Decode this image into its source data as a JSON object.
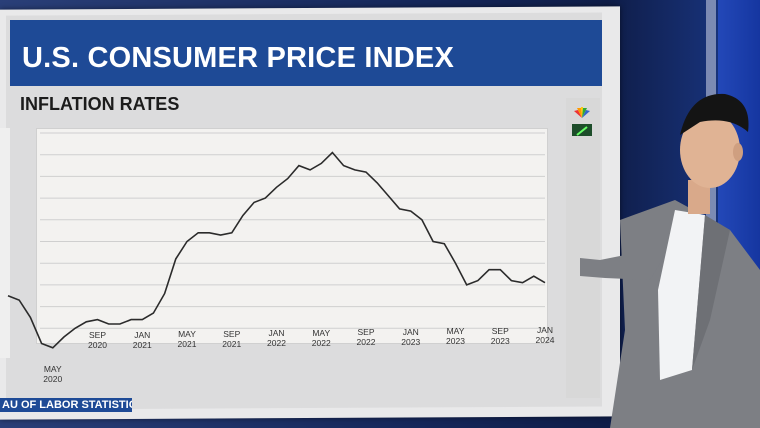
{
  "broadcast": {
    "title": "U.S. CONSUMER PRICE INDEX",
    "subtitle": "INFLATION RATES",
    "source": "AU OF LABOR STATISTICS"
  },
  "chart_data": {
    "type": "line",
    "x_tick_labels": [
      [
        "MAY",
        "2020"
      ],
      [
        "SEP",
        "2020"
      ],
      [
        "JAN",
        "2021"
      ],
      [
        "MAY",
        "2021"
      ],
      [
        "SEP",
        "2021"
      ],
      [
        "JAN",
        "2022"
      ],
      [
        "MAY",
        "2022"
      ],
      [
        "SEP",
        "2022"
      ],
      [
        "JAN",
        "2023"
      ],
      [
        "MAY",
        "2023"
      ],
      [
        "SEP",
        "2023"
      ],
      [
        "JAN",
        "2024"
      ]
    ],
    "series": [
      {
        "x": [
          "2020-01",
          "2020-02",
          "2020-03",
          "2020-04",
          "2020-05",
          "2020-06",
          "2020-07",
          "2020-08",
          "2020-09",
          "2020-10",
          "2020-11",
          "2020-12",
          "2021-01",
          "2021-02",
          "2021-03",
          "2021-04",
          "2021-05",
          "2021-06",
          "2021-07",
          "2021-08",
          "2021-09",
          "2021-10",
          "2021-11",
          "2021-12",
          "2022-01",
          "2022-02",
          "2022-03",
          "2022-04",
          "2022-05",
          "2022-06",
          "2022-07",
          "2022-08",
          "2022-09",
          "2022-10",
          "2022-11",
          "2022-12",
          "2023-01",
          "2023-02",
          "2023-03",
          "2023-04",
          "2023-05",
          "2023-06",
          "2023-07",
          "2023-08",
          "2023-09",
          "2023-10",
          "2023-11",
          "2023-12",
          "2024-01"
        ],
        "y": [
          2.5,
          2.3,
          1.5,
          0.3,
          0.1,
          0.6,
          1.0,
          1.3,
          1.4,
          1.2,
          1.2,
          1.4,
          1.4,
          1.7,
          2.6,
          4.2,
          5.0,
          5.4,
          5.4,
          5.3,
          5.4,
          6.2,
          6.8,
          7.0,
          7.5,
          7.9,
          8.5,
          8.3,
          8.6,
          9.1,
          8.5,
          8.3,
          8.2,
          7.7,
          7.1,
          6.5,
          6.4,
          6.0,
          5.0,
          4.9,
          4.0,
          3.0,
          3.2,
          3.7,
          3.7,
          3.2,
          3.1,
          3.4,
          3.1
        ]
      }
    ],
    "ylim": [
      0,
      10
    ],
    "grid": true,
    "line_color": "#2b2b2b"
  },
  "colors": {
    "title_band": "#1e4a96",
    "plot_bg": "#f3f2f0",
    "grid": "#cfcfcf"
  },
  "icons": [
    "nbc-peacock-icon",
    "pen-icon"
  ]
}
